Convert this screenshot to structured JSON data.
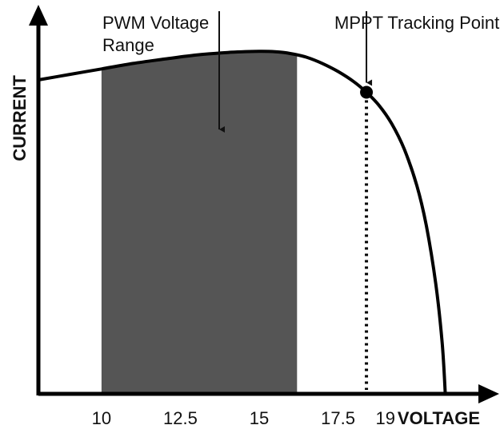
{
  "chart_data": {
    "type": "line",
    "title": "",
    "xlabel": "VOLTAGE",
    "ylabel": "CURRENT",
    "x_ticks": [
      "10",
      "12.5",
      "15",
      "17.5",
      "19"
    ],
    "x_tick_values": [
      10,
      12.5,
      15,
      17.5,
      19
    ],
    "xlim": [
      8.0,
      22.0
    ],
    "ylim": [
      0,
      1.0
    ],
    "grid": false,
    "legend": "none",
    "series": [
      {
        "x": [
          8.0,
          9.0,
          10.0,
          11.0,
          12.0,
          13.0,
          14.0,
          15.0,
          15.5,
          16.0,
          16.5,
          17.0,
          17.5,
          18.0,
          18.4,
          18.8,
          19.2,
          19.6,
          20.0,
          20.3,
          20.6,
          20.8,
          20.9
        ],
        "y": [
          0.86,
          0.875,
          0.89,
          0.905,
          0.917,
          0.928,
          0.935,
          0.938,
          0.937,
          0.932,
          0.922,
          0.905,
          0.883,
          0.855,
          0.826,
          0.79,
          0.74,
          0.67,
          0.57,
          0.46,
          0.3,
          0.14,
          0.0
        ]
      }
    ],
    "shaded_range": {
      "label": "PWM Voltage Range",
      "x_start": 10.0,
      "x_end": 16.2,
      "color": "#555555"
    },
    "marker_point": {
      "label": "MPPT Tracking Point",
      "x": 18.4,
      "y": 0.826
    },
    "annotations": [
      {
        "lines": [
          "PWM Voltage",
          "Range"
        ],
        "target": "shaded_range"
      },
      {
        "lines": [
          "MPPT Tracking Point"
        ],
        "target": "marker_point"
      }
    ],
    "colors": {
      "axis": "#000000",
      "curve": "#000000",
      "shade": "#555555"
    }
  }
}
